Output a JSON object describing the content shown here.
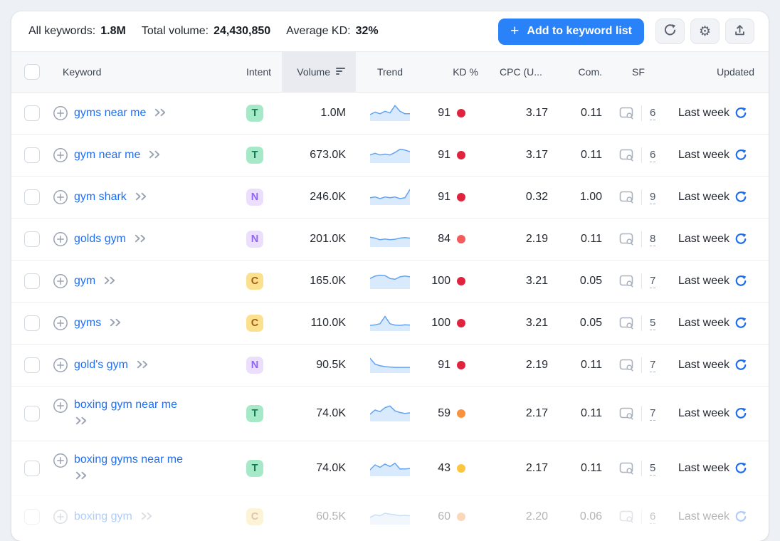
{
  "summary": {
    "stats": [
      {
        "label": "All keywords:",
        "value": "1.8M"
      },
      {
        "label": "Total volume:",
        "value": "24,430,850"
      },
      {
        "label": "Average KD:",
        "value": "32%"
      }
    ]
  },
  "toolbar": {
    "add_button": {
      "plus": "+",
      "label": "Add to keyword list"
    },
    "icon_buttons": [
      "refresh",
      "settings",
      "export"
    ]
  },
  "table": {
    "headers": {
      "keyword": "Keyword",
      "intent": "Intent",
      "volume": "Volume",
      "trend": "Trend",
      "kd": "KD %",
      "cpc": "CPC (U...",
      "com": "Com.",
      "sf": "SF",
      "updated": "Updated"
    },
    "sorted_column": "Volume",
    "rows": [
      {
        "keyword": "gyms near me",
        "intent": "T",
        "volume": "1.0M",
        "trend": [
          3.5,
          5,
          4,
          5.5,
          4.5,
          9,
          5.5,
          4,
          4
        ],
        "kd": "91",
        "kd_color": "#e0243f",
        "cpc": "3.17",
        "com": "0.11",
        "sf": "6",
        "updated": "Last week",
        "two_line": false,
        "faded": false
      },
      {
        "keyword": "gym near me",
        "intent": "T",
        "volume": "673.0K",
        "trend": [
          4.5,
          5.5,
          4.5,
          5,
          4.5,
          6,
          8,
          7.5,
          6.5
        ],
        "kd": "91",
        "kd_color": "#e0243f",
        "cpc": "3.17",
        "com": "0.11",
        "sf": "6",
        "updated": "Last week",
        "two_line": false,
        "faded": false
      },
      {
        "keyword": "gym shark",
        "intent": "N",
        "volume": "246.0K",
        "trend": [
          4,
          4.5,
          3.5,
          4.5,
          4,
          4.5,
          3.5,
          4,
          9
        ],
        "kd": "91",
        "kd_color": "#e0243f",
        "cpc": "0.32",
        "com": "1.00",
        "sf": "9",
        "updated": "Last week",
        "two_line": false,
        "faded": false
      },
      {
        "keyword": "golds gym",
        "intent": "N",
        "volume": "201.0K",
        "trend": [
          5.5,
          5,
          4,
          4.5,
          4,
          4.3,
          5,
          5.3,
          5
        ],
        "kd": "84",
        "kd_color": "#f25c5c",
        "cpc": "2.19",
        "com": "0.11",
        "sf": "8",
        "updated": "Last week",
        "two_line": false,
        "faded": false
      },
      {
        "keyword": "gym",
        "intent": "C",
        "volume": "165.0K",
        "trend": [
          6,
          7.5,
          8,
          7.8,
          6,
          5.5,
          7,
          7.5,
          7
        ],
        "kd": "100",
        "kd_color": "#e0243f",
        "cpc": "3.21",
        "com": "0.05",
        "sf": "7",
        "updated": "Last week",
        "two_line": false,
        "faded": false
      },
      {
        "keyword": "gyms",
        "intent": "C",
        "volume": "110.0K",
        "trend": [
          3,
          3.3,
          4,
          8.5,
          4,
          3.2,
          3,
          3.4,
          3.2
        ],
        "kd": "100",
        "kd_color": "#e0243f",
        "cpc": "3.21",
        "com": "0.05",
        "sf": "5",
        "updated": "Last week",
        "two_line": false,
        "faded": false
      },
      {
        "keyword": "gold's gym",
        "intent": "N",
        "volume": "90.5K",
        "trend": [
          8.5,
          5,
          4,
          3.5,
          3.2,
          3,
          3,
          3,
          3
        ],
        "kd": "91",
        "kd_color": "#e0243f",
        "cpc": "2.19",
        "com": "0.11",
        "sf": "7",
        "updated": "Last week",
        "two_line": false,
        "faded": false
      },
      {
        "keyword": "boxing gym near me",
        "intent": "T",
        "volume": "74.0K",
        "trend": [
          4,
          6.5,
          5.5,
          8,
          9,
          6,
          5,
          4.5,
          4.8
        ],
        "kd": "59",
        "kd_color": "#f9923e",
        "cpc": "2.17",
        "com": "0.11",
        "sf": "7",
        "updated": "Last week",
        "two_line": true,
        "faded": false
      },
      {
        "keyword": "boxing gyms near me",
        "intent": "T",
        "volume": "74.0K",
        "trend": [
          3.5,
          6.5,
          5,
          7,
          5.5,
          7.5,
          4,
          4,
          4.3
        ],
        "kd": "43",
        "kd_color": "#fdc63f",
        "cpc": "2.17",
        "com": "0.11",
        "sf": "5",
        "updated": "Last week",
        "two_line": true,
        "faded": false
      },
      {
        "keyword": "boxing gym",
        "intent": "C",
        "volume": "60.5K",
        "trend": [
          4,
          5.5,
          5,
          6.5,
          6,
          5.5,
          5,
          5.2,
          5
        ],
        "kd": "60",
        "kd_color": "#f9923e",
        "cpc": "2.20",
        "com": "0.06",
        "sf": "6",
        "updated": "Last week",
        "two_line": false,
        "faded": true
      }
    ]
  },
  "colors": {
    "accent_blue": "#2a82f8",
    "link_blue": "#1f6ff2",
    "refresh_blue": "#1a6bf0",
    "spark_stroke": "#63a4f2",
    "spark_fill": "#d9eafc",
    "intent": {
      "T": {
        "bg": "#a5e9c8",
        "fg": "#157a56"
      },
      "N": {
        "bg": "#ecdffd",
        "fg": "#9165f4"
      },
      "C": {
        "bg": "#fbe08e",
        "fg": "#a35b1d"
      }
    }
  }
}
